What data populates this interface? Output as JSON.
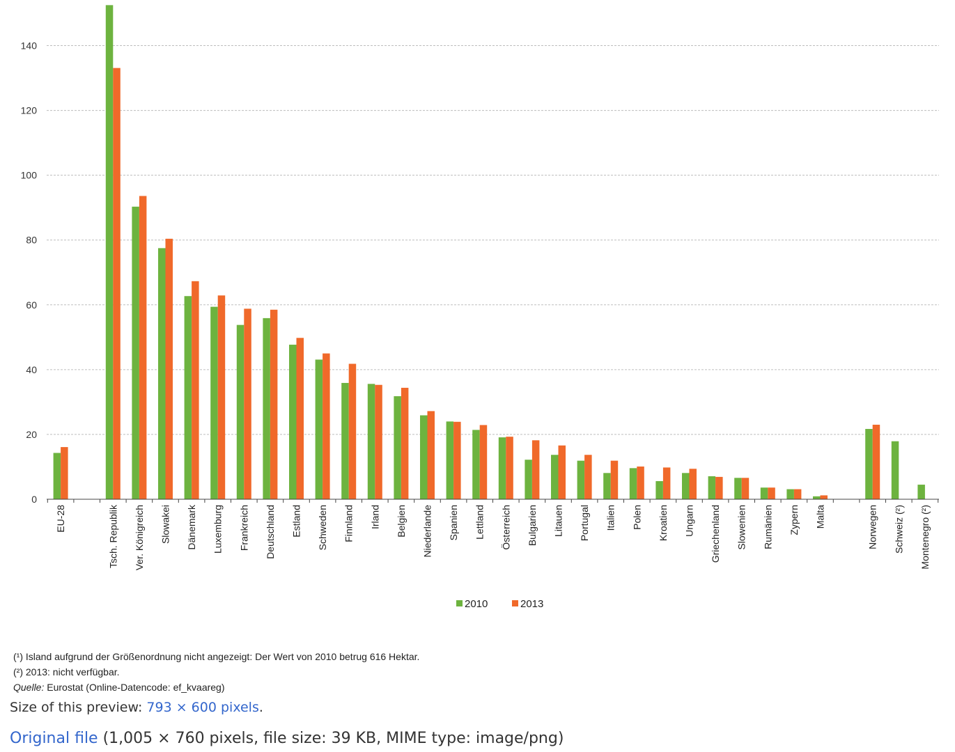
{
  "chart_data": {
    "type": "bar",
    "title": "",
    "xlabel": "",
    "ylabel": "",
    "ylim": [
      0,
      150
    ],
    "yticks": [
      0,
      20,
      40,
      60,
      80,
      100,
      120,
      140
    ],
    "grid": true,
    "legend_position": "bottom-center",
    "colors": {
      "2010": "#6db33f",
      "2013": "#f0692a"
    },
    "groups": [
      [
        "EU-28"
      ],
      [
        "Tsch. Republik",
        "Ver. Königreich",
        "Slowakei",
        "Dänemark",
        "Luxemburg",
        "Frankreich",
        "Deutschland",
        "Estland",
        "Schweden",
        "Finnland",
        "Irland",
        "Belgien",
        "Niederlande",
        "Spanien",
        "Lettland",
        "Österreich",
        "Bulgarien",
        "Litauen",
        "Portugal",
        "Italien",
        "Polen",
        "Kroatien",
        "Ungarn",
        "Griechenland",
        "Slowenien",
        "Rumänien",
        "Zypern",
        "Malta"
      ],
      [
        "Norwegen",
        "Schweiz (²)",
        "Montenegro (²)"
      ]
    ],
    "categories": [
      "EU-28",
      "Tsch. Republik",
      "Ver. Königreich",
      "Slowakei",
      "Dänemark",
      "Luxemburg",
      "Frankreich",
      "Deutschland",
      "Estland",
      "Schweden",
      "Finnland",
      "Irland",
      "Belgien",
      "Niederlande",
      "Spanien",
      "Lettland",
      "Österreich",
      "Bulgarien",
      "Litauen",
      "Portugal",
      "Italien",
      "Polen",
      "Kroatien",
      "Ungarn",
      "Griechenland",
      "Slowenien",
      "Rumänien",
      "Zypern",
      "Malta",
      "Norwegen",
      "Schweiz (²)",
      "Montenegro (²)"
    ],
    "series": [
      {
        "name": "2010",
        "values": [
          14.3,
          152.5,
          90.3,
          77.5,
          62.7,
          59.4,
          53.8,
          55.9,
          47.7,
          43.1,
          35.9,
          35.6,
          31.8,
          25.9,
          24.0,
          21.4,
          19.1,
          12.2,
          13.7,
          11.9,
          8.1,
          9.6,
          5.6,
          8.1,
          7.1,
          6.6,
          3.6,
          3.1,
          0.9,
          21.7,
          17.9,
          4.5
        ]
      },
      {
        "name": "2013",
        "values": [
          16.1,
          133.1,
          93.6,
          80.4,
          67.3,
          62.9,
          58.8,
          58.5,
          49.8,
          45.0,
          41.8,
          35.3,
          34.4,
          27.2,
          23.9,
          22.9,
          19.3,
          18.2,
          16.6,
          13.7,
          11.9,
          10.1,
          9.8,
          9.4,
          6.9,
          6.6,
          3.6,
          3.1,
          1.2,
          23.0,
          null,
          null
        ]
      }
    ]
  },
  "footnotes": {
    "note1": "(¹) Island aufgrund der Größenordnung nicht angezeigt:  Der Wert von 2010 betrug 616 Hektar.",
    "note2": "(²) 2013: nicht verfügbar.",
    "source_label": "Quelle:",
    "source_text": " Eurostat (Online-Datencode: ef_kvaareg)"
  },
  "file_info": {
    "preview_label": "Size of this preview: ",
    "preview_link": "793 × 600 pixels",
    "preview_end": ".",
    "original_link": "Original file",
    "original_details": " (1,005 × 760 pixels, file size: 39 KB, MIME type: image/png)"
  }
}
